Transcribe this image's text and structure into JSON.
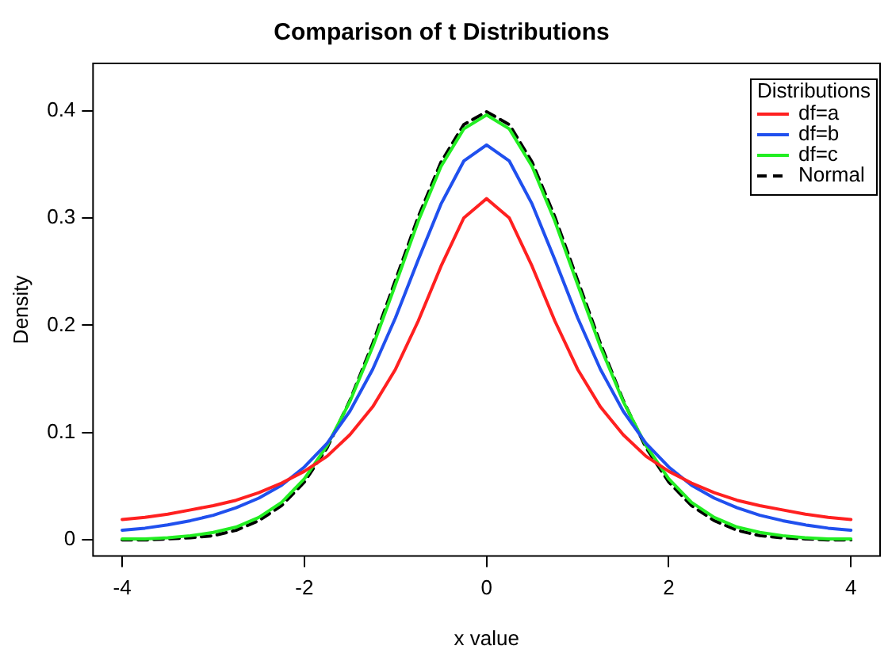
{
  "chart_data": {
    "type": "line",
    "title": "Comparison of t Distributions",
    "xlabel": "x value",
    "ylabel": "Density",
    "legend_title": "Distributions",
    "x": [
      -4,
      -3.75,
      -3.5,
      -3.25,
      -3,
      -2.75,
      -2.5,
      -2.25,
      -2,
      -1.75,
      -1.5,
      -1.25,
      -1,
      -0.75,
      -0.5,
      -0.25,
      0,
      0.25,
      0.5,
      0.75,
      1,
      1.25,
      1.5,
      1.75,
      2,
      2.25,
      2.5,
      2.75,
      3,
      3.25,
      3.5,
      3.75,
      4
    ],
    "series": [
      {
        "name": "df=a",
        "color": "#ff2020",
        "values": [
          0.019,
          0.021,
          0.024,
          0.028,
          0.032,
          0.037,
          0.044,
          0.053,
          0.064,
          0.078,
          0.098,
          0.124,
          0.159,
          0.204,
          0.255,
          0.3,
          0.318,
          0.3,
          0.255,
          0.204,
          0.159,
          0.124,
          0.098,
          0.078,
          0.064,
          0.053,
          0.044,
          0.037,
          0.032,
          0.028,
          0.024,
          0.021,
          0.019
        ]
      },
      {
        "name": "df=b",
        "color": "#2050ee",
        "values": [
          0.009,
          0.011,
          0.014,
          0.018,
          0.023,
          0.03,
          0.039,
          0.051,
          0.068,
          0.09,
          0.12,
          0.159,
          0.207,
          0.261,
          0.313,
          0.353,
          0.368,
          0.353,
          0.313,
          0.261,
          0.207,
          0.159,
          0.12,
          0.09,
          0.068,
          0.051,
          0.039,
          0.03,
          0.023,
          0.018,
          0.014,
          0.011,
          0.009
        ]
      },
      {
        "name": "df=c",
        "color": "#22ee22",
        "values": [
          0.001,
          0.001,
          0.002,
          0.004,
          0.007,
          0.012,
          0.021,
          0.035,
          0.057,
          0.088,
          0.129,
          0.18,
          0.238,
          0.297,
          0.348,
          0.383,
          0.396,
          0.383,
          0.348,
          0.297,
          0.238,
          0.18,
          0.129,
          0.088,
          0.057,
          0.035,
          0.021,
          0.012,
          0.007,
          0.004,
          0.002,
          0.001,
          0.001
        ]
      },
      {
        "name": "Normal",
        "color": "#000000",
        "line_style": "dashed",
        "values": [
          0.0,
          0.0,
          0.001,
          0.002,
          0.004,
          0.009,
          0.018,
          0.032,
          0.054,
          0.086,
          0.13,
          0.183,
          0.242,
          0.301,
          0.352,
          0.387,
          0.399,
          0.387,
          0.352,
          0.301,
          0.242,
          0.183,
          0.13,
          0.086,
          0.054,
          0.032,
          0.018,
          0.009,
          0.004,
          0.002,
          0.001,
          0.0,
          0.0
        ]
      }
    ],
    "xlim": [
      -4.32,
      4.32
    ],
    "xticks": [
      -4,
      -2,
      0,
      2,
      4
    ],
    "ylim": [
      -0.015,
      0.444
    ],
    "yticks": [
      0,
      0.1,
      0.2,
      0.3,
      0.4
    ],
    "grid": false,
    "legend": "top right",
    "marker": "none"
  }
}
